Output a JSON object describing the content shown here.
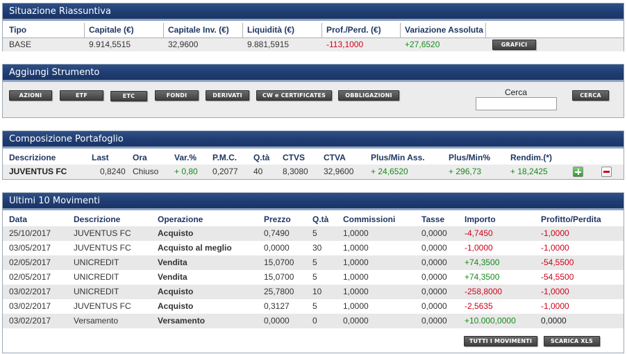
{
  "summary": {
    "title": "Situazione Riassuntiva",
    "headers": [
      "Tipo",
      "Capitale (€)",
      "Capitale Inv. (€)",
      "Liquidità (€)",
      "Prof./Perd. (€)",
      "Variazione Assoluta"
    ],
    "row": {
      "tipo": "BASE",
      "capitale": "9.914,5515",
      "capitale_inv": "32,9600",
      "liquidita": "9.881,5915",
      "prof_perd": "-113,1000",
      "variazione": "+27,6520"
    },
    "button": "GRAFICI"
  },
  "add_instrument": {
    "title": "Aggiungi Strumento",
    "buttons": [
      "AZIONI",
      "ETF",
      "ETC",
      "FONDI",
      "DERIVATI",
      "CW e CERTIFICATES",
      "OBBLIGAZIONI"
    ],
    "search_label": "Cerca",
    "search_value": "",
    "search_button": "CERCA"
  },
  "portfolio": {
    "title": "Composizione Portafoglio",
    "headers": [
      "Descrizione",
      "Last",
      "Ora",
      "Var.%",
      "P.M.C.",
      "Q.tà",
      "CTVS",
      "CTVA",
      "Plus/Min Ass.",
      "Plus/Min%",
      "Rendim.(*)"
    ],
    "row": {
      "descrizione": "JUVENTUS FC",
      "last": "0,8240",
      "ora": "Chiuso",
      "var": "+ 0,80",
      "pmc": "0,2077",
      "qta": "40",
      "ctvs": "8,3080",
      "ctva": "32,9600",
      "plus_ass": "+ 24,6520",
      "plus_pct": "+ 296,73",
      "rendim": "+ 18,2425"
    }
  },
  "movements": {
    "title": "Ultimi 10 Movimenti",
    "headers": [
      "Data",
      "Descrizione",
      "Operazione",
      "Prezzo",
      "Q.tà",
      "Commissioni",
      "Tasse",
      "Importo",
      "Profitto/Perdita"
    ],
    "rows": [
      {
        "data": "25/10/2017",
        "descrizione": "JUVENTUS FC",
        "operazione": "Acquisto",
        "prezzo": "0,7490",
        "qta": "5",
        "commissioni": "1,0000",
        "tasse": "0,0000",
        "importo": "-4,7450",
        "profitto": "-1,0000"
      },
      {
        "data": "03/05/2017",
        "descrizione": "JUVENTUS FC",
        "operazione": "Acquisto al meglio",
        "prezzo": "0,0000",
        "qta": "30",
        "commissioni": "1,0000",
        "tasse": "0,0000",
        "importo": "-1,0000",
        "profitto": "-1,0000"
      },
      {
        "data": "02/05/2017",
        "descrizione": "UNICREDIT",
        "operazione": "Vendita",
        "prezzo": "15,0700",
        "qta": "5",
        "commissioni": "1,0000",
        "tasse": "0,0000",
        "importo": "+74,3500",
        "profitto": "-54,5500"
      },
      {
        "data": "02/05/2017",
        "descrizione": "UNICREDIT",
        "operazione": "Vendita",
        "prezzo": "15,0700",
        "qta": "5",
        "commissioni": "1,0000",
        "tasse": "0,0000",
        "importo": "+74,3500",
        "profitto": "-54,5500"
      },
      {
        "data": "03/02/2017",
        "descrizione": "UNICREDIT",
        "operazione": "Acquisto",
        "prezzo": "25,7800",
        "qta": "10",
        "commissioni": "1,0000",
        "tasse": "0,0000",
        "importo": "-258,8000",
        "profitto": "-1,0000"
      },
      {
        "data": "03/02/2017",
        "descrizione": "JUVENTUS FC",
        "operazione": "Acquisto",
        "prezzo": "0,3127",
        "qta": "5",
        "commissioni": "1,0000",
        "tasse": "0,0000",
        "importo": "-2,5635",
        "profitto": "-1,0000"
      },
      {
        "data": "03/02/2017",
        "descrizione": "Versamento",
        "operazione": "Versamento",
        "prezzo": "0,0000",
        "qta": "0",
        "commissioni": "0,0000",
        "tasse": "0,0000",
        "importo": "+10.000,0000",
        "profitto": "0,0000"
      }
    ],
    "buttons": [
      "TUTTI I MOVIMENTI",
      "SCARICA XLS"
    ]
  },
  "colors": {
    "header_bg": "#1f3d72",
    "negative": "#d0021b",
    "positive": "#168a1a",
    "row_alt": "#e8e8e8"
  }
}
